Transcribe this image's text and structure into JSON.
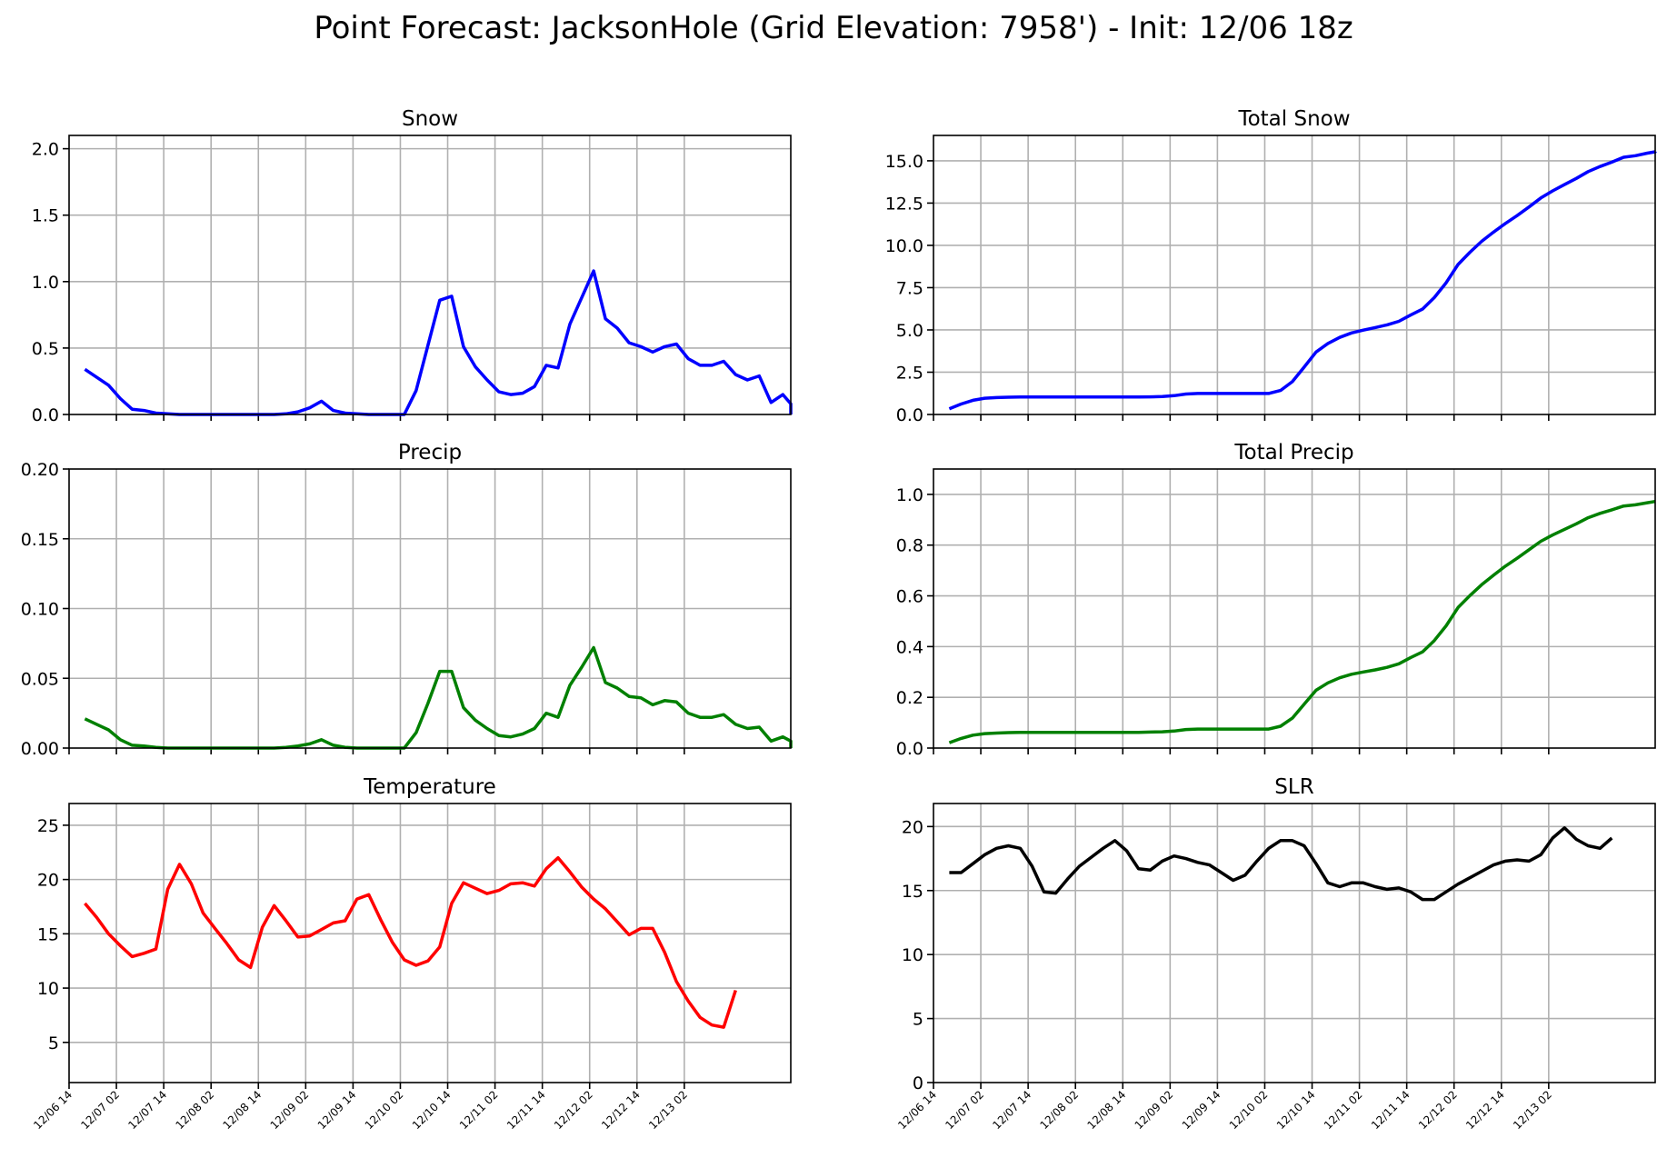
{
  "figure": {
    "title": "Point Forecast: JacksonHole (Grid Elevation: 7958') - Init: 12/06 18z"
  },
  "colors": {
    "snow": "#0000ff",
    "precip": "#008000",
    "temperature": "#ff0000",
    "slr": "#000000",
    "grid": "#b0b0b0"
  },
  "chart_data": [
    {
      "id": "snow",
      "type": "line",
      "title": "Snow",
      "xlabel": "",
      "ylabel": "",
      "ylim": [
        0,
        2.1
      ],
      "yticks": [
        "0.0",
        "0.5",
        "1.0",
        "1.5",
        "2.0"
      ],
      "grid": true,
      "color": "#0000ff",
      "series": [
        {
          "values": [
            0.34,
            0.28,
            0.22,
            0.12,
            0.04,
            0.03,
            0.01,
            0.005,
            0,
            0,
            0,
            0,
            0,
            0,
            0,
            0,
            0,
            0.005,
            0.02,
            0.05,
            0.1,
            0.03,
            0.01,
            0.005,
            0,
            0,
            0,
            0,
            0.18,
            0.52,
            0.86,
            0.89,
            0.51,
            0.36,
            0.26,
            0.17,
            0.15,
            0.16,
            0.21,
            0.37,
            0.35,
            0.68,
            0.88,
            1.08,
            0.72,
            0.65,
            0.54,
            0.51,
            0.47,
            0.51,
            0.53,
            0.42,
            0.37,
            0.37,
            0.4,
            0.3,
            0.26,
            0.29,
            0.09,
            0.15,
            0.08,
            0.0
          ]
        }
      ]
    },
    {
      "id": "total-snow",
      "type": "line",
      "title": "Total Snow",
      "xlabel": "",
      "ylabel": "",
      "ylim": [
        0,
        16.5
      ],
      "yticks": [
        "0.0",
        "2.5",
        "5.0",
        "7.5",
        "10.0",
        "12.5",
        "15.0"
      ],
      "grid": true,
      "color": "#0000ff",
      "series": [
        {
          "values": [
            0.34,
            0.62,
            0.84,
            0.96,
            1.0,
            1.02,
            1.03,
            1.03,
            1.03,
            1.03,
            1.03,
            1.03,
            1.03,
            1.03,
            1.03,
            1.03,
            1.03,
            1.04,
            1.06,
            1.11,
            1.21,
            1.24,
            1.24,
            1.24,
            1.24,
            1.24,
            1.24,
            1.24,
            1.42,
            1.94,
            2.8,
            3.69,
            4.2,
            4.56,
            4.82,
            4.99,
            5.14,
            5.3,
            5.51,
            5.88,
            6.23,
            6.91,
            7.79,
            8.87,
            9.59,
            10.24,
            10.78,
            11.29,
            11.76,
            12.27,
            12.8,
            13.22,
            13.59,
            13.96,
            14.36,
            14.66,
            14.92,
            15.21,
            15.3,
            15.45,
            15.53,
            15.54
          ]
        }
      ]
    },
    {
      "id": "precip",
      "type": "line",
      "title": "Precip",
      "xlabel": "",
      "ylabel": "",
      "ylim": [
        0,
        0.2
      ],
      "yticks": [
        "0.00",
        "0.05",
        "0.10",
        "0.15",
        "0.20"
      ],
      "grid": true,
      "color": "#008000",
      "series": [
        {
          "values": [
            0.021,
            0.017,
            0.013,
            0.006,
            0.002,
            0.0015,
            0.0005,
            0,
            0,
            0,
            0,
            0,
            0,
            0,
            0,
            0,
            0,
            0.0005,
            0.0015,
            0.003,
            0.006,
            0.002,
            0.0005,
            0,
            0,
            0,
            0,
            0,
            0.011,
            0.032,
            0.055,
            0.055,
            0.029,
            0.02,
            0.014,
            0.009,
            0.008,
            0.01,
            0.014,
            0.025,
            0.022,
            0.045,
            0.058,
            0.072,
            0.047,
            0.043,
            0.037,
            0.036,
            0.031,
            0.034,
            0.033,
            0.025,
            0.022,
            0.022,
            0.024,
            0.017,
            0.014,
            0.015,
            0.005,
            0.008,
            0.005,
            0.0
          ]
        }
      ]
    },
    {
      "id": "total-precip",
      "type": "line",
      "title": "Total Precip",
      "xlabel": "",
      "ylabel": "",
      "ylim": [
        0,
        1.1
      ],
      "yticks": [
        "0.0",
        "0.2",
        "0.4",
        "0.6",
        "0.8",
        "1.0"
      ],
      "grid": true,
      "color": "#008000",
      "series": [
        {
          "values": [
            0.021,
            0.038,
            0.051,
            0.057,
            0.059,
            0.061,
            0.062,
            0.062,
            0.062,
            0.062,
            0.062,
            0.062,
            0.062,
            0.062,
            0.062,
            0.062,
            0.062,
            0.063,
            0.064,
            0.067,
            0.073,
            0.075,
            0.075,
            0.075,
            0.075,
            0.075,
            0.075,
            0.075,
            0.086,
            0.118,
            0.173,
            0.228,
            0.257,
            0.277,
            0.291,
            0.3,
            0.308,
            0.318,
            0.332,
            0.357,
            0.379,
            0.424,
            0.482,
            0.554,
            0.601,
            0.644,
            0.681,
            0.717,
            0.748,
            0.782,
            0.815,
            0.84,
            0.862,
            0.884,
            0.908,
            0.925,
            0.939,
            0.954,
            0.959,
            0.967,
            0.972,
            0.972
          ]
        }
      ]
    },
    {
      "id": "temperature",
      "type": "line",
      "title": "Temperature",
      "xlabel": "",
      "ylabel": "",
      "ylim": [
        1.3,
        27
      ],
      "yticks": [
        "5",
        "10",
        "15",
        "20",
        "25"
      ],
      "grid": true,
      "color": "#ff0000",
      "xticks": [
        "12/06 14",
        "12/07 02",
        "12/07 14",
        "12/08 02",
        "12/08 14",
        "12/09 02",
        "12/09 14",
        "12/10 02",
        "12/10 14",
        "12/11 02",
        "12/11 14",
        "12/12 02",
        "12/12 14",
        "12/13 02"
      ],
      "series": [
        {
          "values": [
            17.8,
            16.5,
            15.0,
            13.9,
            12.9,
            13.2,
            13.6,
            19.1,
            21.4,
            19.6,
            16.9,
            15.5,
            14.1,
            12.6,
            11.9,
            15.6,
            17.6,
            16.2,
            14.7,
            14.8,
            15.4,
            16.0,
            16.2,
            18.2,
            18.6,
            16.3,
            14.2,
            12.6,
            12.1,
            12.5,
            13.8,
            17.8,
            19.7,
            19.2,
            18.7,
            19.0,
            19.6,
            19.7,
            19.4,
            21.0,
            22.0,
            20.7,
            19.3,
            18.2,
            17.3,
            16.1,
            14.9,
            15.5,
            15.5,
            13.3,
            10.6,
            8.8,
            7.3,
            6.6,
            6.4,
            9.8
          ]
        }
      ]
    },
    {
      "id": "slr",
      "type": "line",
      "title": "SLR",
      "xlabel": "",
      "ylabel": "",
      "ylim": [
        0,
        21.8
      ],
      "yticks": [
        "0",
        "5",
        "10",
        "15",
        "20"
      ],
      "grid": true,
      "color": "#000000",
      "xticks": [
        "12/06 14",
        "12/07 02",
        "12/07 14",
        "12/08 02",
        "12/08 14",
        "12/09 02",
        "12/09 14",
        "12/10 02",
        "12/10 14",
        "12/11 02",
        "12/11 14",
        "12/12 02",
        "12/12 14",
        "12/13 02"
      ],
      "series": [
        {
          "values": [
            16.4,
            16.4,
            17.1,
            17.8,
            18.3,
            18.5,
            18.3,
            16.9,
            14.9,
            14.8,
            15.9,
            16.9,
            17.6,
            18.3,
            18.9,
            18.1,
            16.7,
            16.6,
            17.3,
            17.7,
            17.5,
            17.2,
            17.0,
            16.4,
            15.8,
            16.2,
            17.3,
            18.3,
            18.9,
            18.9,
            18.5,
            17.1,
            15.6,
            15.3,
            15.6,
            15.6,
            15.3,
            15.1,
            15.2,
            14.9,
            14.3,
            14.3,
            14.9,
            15.5,
            16.0,
            16.5,
            17.0,
            17.3,
            17.4,
            17.3,
            17.8,
            19.1,
            19.9,
            19.0,
            18.5,
            18.3,
            19.1
          ]
        }
      ]
    }
  ]
}
